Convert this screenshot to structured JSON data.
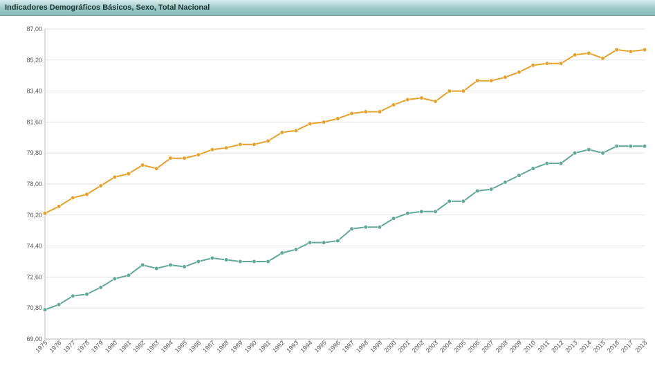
{
  "window": {
    "title": "Indicadores Demográficos Básicos, Sexo, Total Nacional"
  },
  "chart_data": {
    "type": "line",
    "title": "Indicadores Demográficos Básicos, Sexo, Total Nacional",
    "xlabel": "",
    "ylabel": "",
    "ylim": [
      69.0,
      87.0
    ],
    "y_ticks": [
      "87,00",
      "85,20",
      "83,40",
      "81,60",
      "79,80",
      "78,00",
      "76,20",
      "74,40",
      "72,60",
      "70,80",
      "69,00"
    ],
    "grid": true,
    "x": [
      "1975",
      "1976",
      "1977",
      "1978",
      "1979",
      "1980",
      "1981",
      "1982",
      "1983",
      "1984",
      "1985",
      "1986",
      "1987",
      "1988",
      "1989",
      "1990",
      "1991",
      "1992",
      "1993",
      "1994",
      "1995",
      "1996",
      "1997",
      "1998",
      "1999",
      "2000",
      "2001",
      "2002",
      "2003",
      "2004",
      "2005",
      "2006",
      "2007",
      "2008",
      "2009",
      "2010",
      "2011",
      "2012",
      "2013",
      "2014",
      "2015",
      "2016",
      "2017",
      "2018"
    ],
    "series": [
      {
        "color": "#e8a028",
        "values": [
          76.3,
          76.7,
          77.2,
          77.4,
          77.9,
          78.4,
          78.6,
          79.1,
          78.9,
          79.5,
          79.5,
          79.7,
          80.0,
          80.1,
          80.3,
          80.3,
          80.5,
          81.0,
          81.1,
          81.5,
          81.6,
          81.8,
          82.1,
          82.2,
          82.2,
          82.6,
          82.9,
          83.0,
          82.8,
          83.4,
          83.4,
          84.0,
          84.0,
          84.2,
          84.5,
          84.9,
          85.0,
          85.0,
          85.5,
          85.6,
          85.3,
          85.8,
          85.7,
          85.8
        ]
      },
      {
        "color": "#5fa898",
        "values": [
          70.7,
          71.0,
          71.5,
          71.6,
          72.0,
          72.5,
          72.7,
          73.3,
          73.1,
          73.3,
          73.2,
          73.5,
          73.7,
          73.6,
          73.5,
          73.5,
          73.5,
          74.0,
          74.2,
          74.6,
          74.6,
          74.7,
          75.4,
          75.5,
          75.5,
          76.0,
          76.3,
          76.4,
          76.4,
          77.0,
          77.0,
          77.6,
          77.7,
          78.1,
          78.5,
          78.9,
          79.2,
          79.2,
          79.8,
          80.0,
          79.8,
          80.2,
          80.2,
          80.2
        ]
      }
    ]
  }
}
